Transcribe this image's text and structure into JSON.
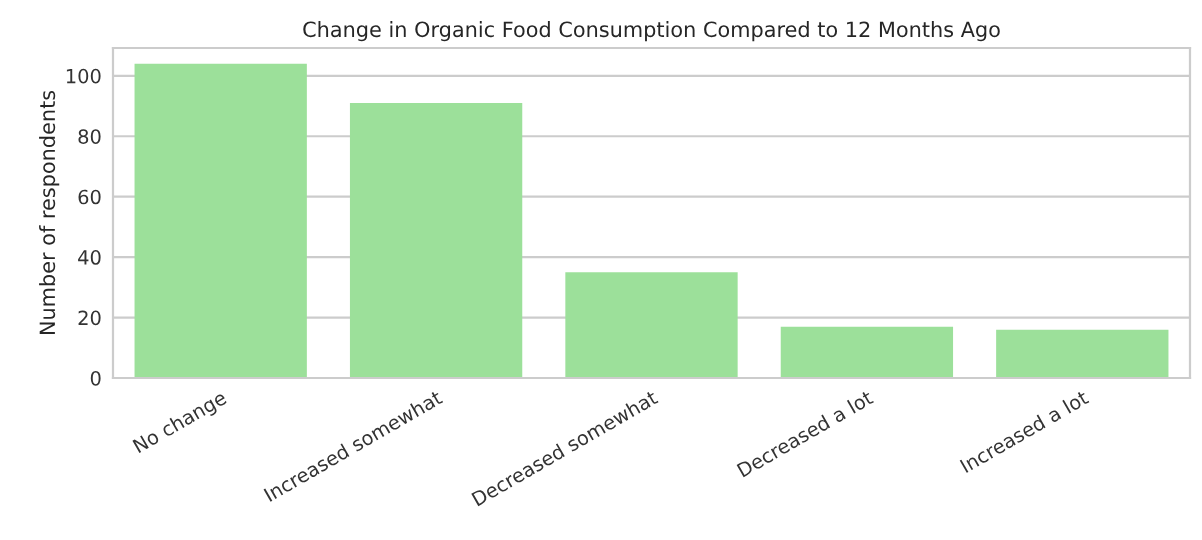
{
  "chart_data": {
    "type": "bar",
    "title": "Change in Organic Food Consumption Compared to 12 Months Ago",
    "ylabel": "Number of respondents",
    "categories": [
      "No change",
      "Increased somewhat",
      "Decreased somewhat",
      "Decreased a lot",
      "Increased a lot"
    ],
    "values": [
      104,
      91,
      35,
      17,
      16
    ],
    "color": "#9ce09a",
    "ylim": [
      0,
      109.2
    ],
    "yticks": [
      0,
      20,
      40,
      60,
      80,
      100
    ],
    "grid": "y"
  }
}
